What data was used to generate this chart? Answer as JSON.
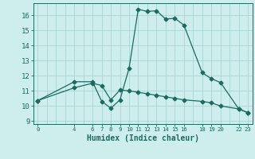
{
  "xlabel": "Humidex (Indice chaleur)",
  "background_color": "#ceeeed",
  "grid_color": "#aad4d2",
  "line_color": "#1a6b60",
  "xlim": [
    -0.5,
    23.5
  ],
  "ylim": [
    8.8,
    16.8
  ],
  "yticks": [
    9,
    10,
    11,
    12,
    13,
    14,
    15,
    16
  ],
  "x_ticks": [
    0,
    4,
    6,
    7,
    8,
    9,
    10,
    11,
    12,
    13,
    14,
    15,
    16,
    18,
    19,
    20,
    22,
    23
  ],
  "x_tick_labels": [
    "0",
    "4",
    "6",
    "7",
    "8",
    "9",
    "10",
    "11",
    "12",
    "13",
    "14",
    "15",
    "16",
    "18",
    "19",
    "20",
    "22",
    "23"
  ],
  "series1_x": [
    0,
    4,
    6,
    7,
    8,
    9,
    10,
    11,
    12,
    13,
    14,
    15,
    16,
    18,
    19,
    20,
    22,
    23
  ],
  "series1_y": [
    10.35,
    11.6,
    11.6,
    10.3,
    9.85,
    10.4,
    12.5,
    16.4,
    16.25,
    16.3,
    15.75,
    15.8,
    15.35,
    12.2,
    11.8,
    11.55,
    9.8,
    9.55
  ],
  "series2_x": [
    0,
    4,
    6,
    7,
    8,
    9,
    10,
    11,
    12,
    13,
    14,
    15,
    16,
    18,
    19,
    20,
    22,
    23
  ],
  "series2_y": [
    10.35,
    11.2,
    11.5,
    11.35,
    10.4,
    11.05,
    11.0,
    10.9,
    10.8,
    10.7,
    10.6,
    10.5,
    10.4,
    10.3,
    10.2,
    10.0,
    9.8,
    9.55
  ]
}
